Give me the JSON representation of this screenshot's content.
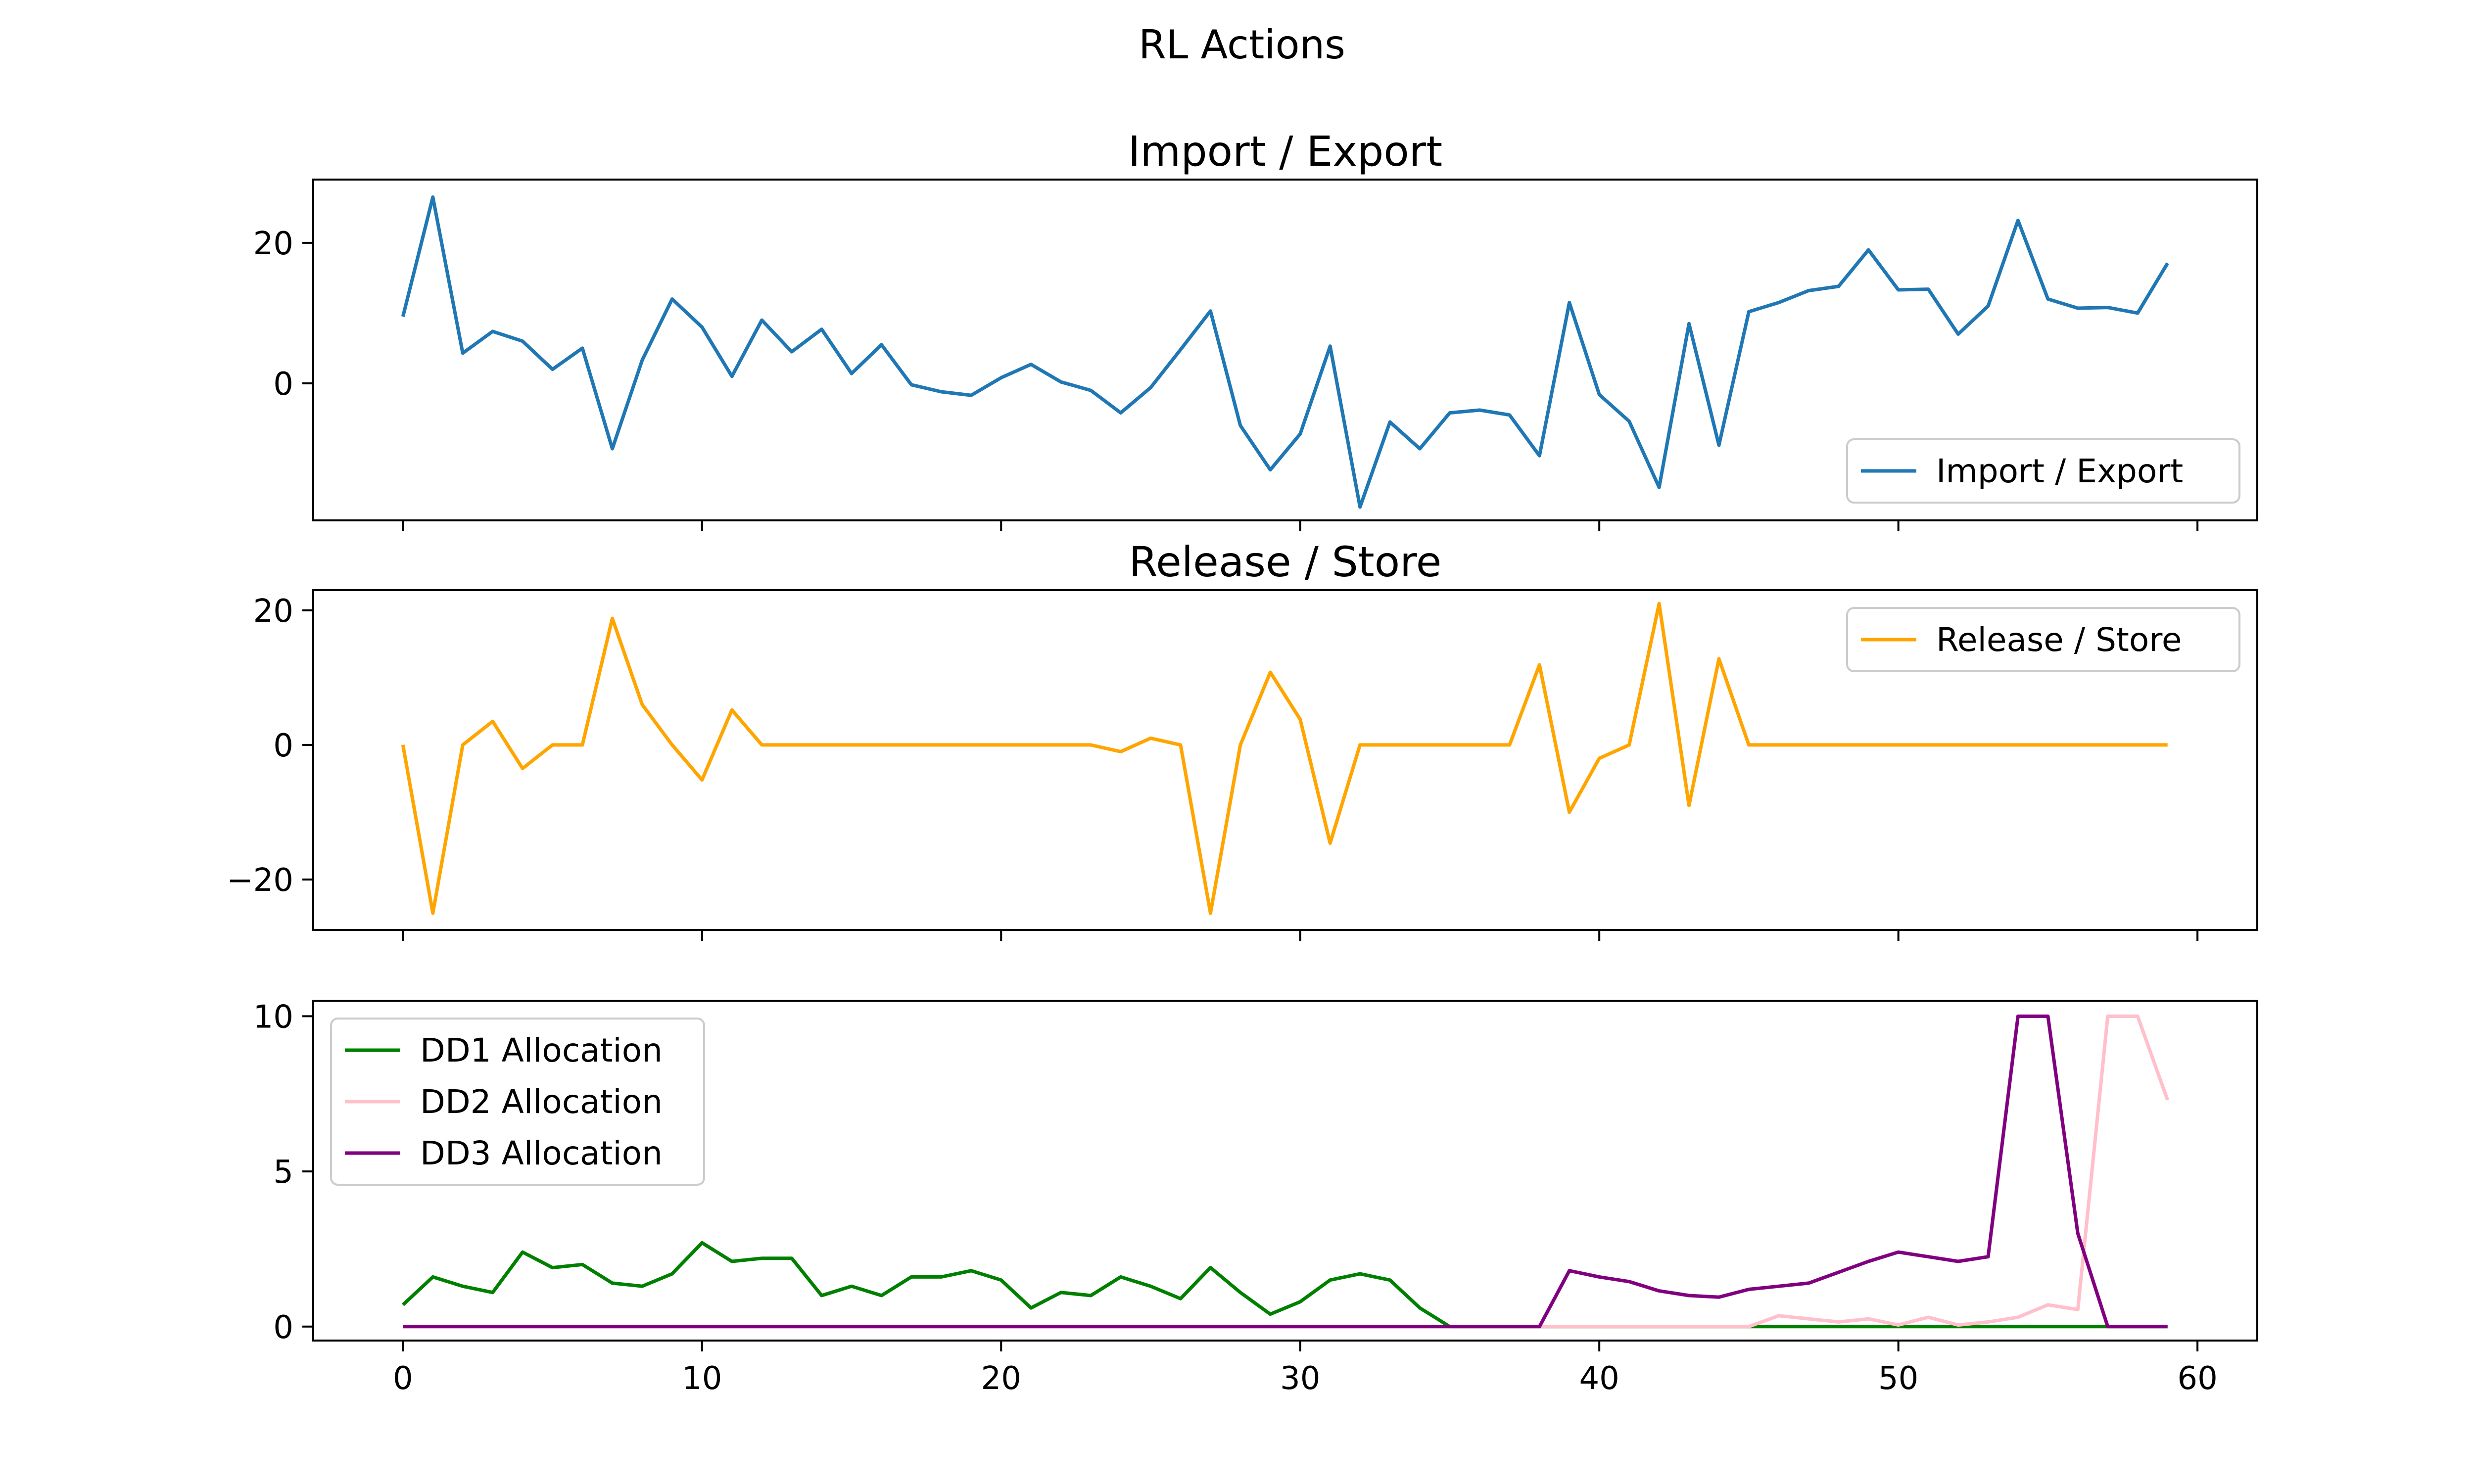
{
  "figure": {
    "suptitle": "RL Actions"
  },
  "chart_data": [
    {
      "type": "line",
      "title": "Import / Export",
      "xlabel": "",
      "ylabel": "",
      "xlim": [
        -3,
        62
      ],
      "ylim": [
        -19.5,
        29
      ],
      "xticks": [
        0,
        10,
        20,
        30,
        40,
        50,
        60
      ],
      "xticklabels_visible": false,
      "yticks": [
        0,
        20
      ],
      "grid": false,
      "legend_position": "lower right",
      "x": [
        0,
        1,
        2,
        3,
        4,
        5,
        6,
        7,
        8,
        9,
        10,
        11,
        12,
        13,
        14,
        15,
        16,
        17,
        18,
        19,
        20,
        21,
        22,
        23,
        24,
        25,
        26,
        27,
        28,
        29,
        30,
        31,
        32,
        33,
        34,
        35,
        36,
        37,
        38,
        39,
        40,
        41,
        42,
        43,
        44,
        45,
        46,
        47,
        48,
        49,
        50,
        51,
        52,
        53,
        54,
        55,
        56,
        57,
        58,
        59
      ],
      "series": [
        {
          "name": "Import / Export",
          "color": "#1f77b4",
          "values": [
            9.5,
            26.5,
            4.3,
            7.4,
            6,
            2,
            5,
            -9.3,
            3.3,
            12,
            8,
            1,
            9,
            4.5,
            7.7,
            1.4,
            5.5,
            -0.2,
            -1.2,
            -1.7,
            0.8,
            2.7,
            0.2,
            -1,
            -4.2,
            -0.6,
            4.8,
            10.3,
            -6,
            -12.3,
            -7.2,
            5.3,
            -17.6,
            -5.5,
            -9.3,
            -4.2,
            -3.8,
            -4.5,
            -10.3,
            11.5,
            -1.6,
            -5.4,
            -14.8,
            8.5,
            -8.8,
            10.2,
            11.5,
            13.2,
            13.8,
            19,
            13.3,
            13.4,
            7,
            11,
            23.2,
            12,
            10.7,
            10.8,
            10,
            17.1
          ]
        }
      ]
    },
    {
      "type": "line",
      "title": "Release / Store",
      "xlabel": "",
      "ylabel": "",
      "xlim": [
        -3,
        62
      ],
      "ylim": [
        -27.5,
        23
      ],
      "xticks": [
        0,
        10,
        20,
        30,
        40,
        50,
        60
      ],
      "xticklabels_visible": false,
      "yticks": [
        -20,
        0,
        20
      ],
      "grid": false,
      "legend_position": "upper right",
      "x": [
        0,
        1,
        2,
        3,
        4,
        5,
        6,
        7,
        8,
        9,
        10,
        11,
        12,
        13,
        14,
        15,
        16,
        17,
        18,
        19,
        20,
        21,
        22,
        23,
        24,
        25,
        26,
        27,
        28,
        29,
        30,
        31,
        32,
        33,
        34,
        35,
        36,
        37,
        38,
        39,
        40,
        41,
        42,
        43,
        44,
        45,
        46,
        47,
        48,
        49,
        50,
        51,
        52,
        53,
        54,
        55,
        56,
        57,
        58,
        59
      ],
      "series": [
        {
          "name": "Release / Store",
          "color": "#ffa500",
          "values": [
            0,
            -25,
            0,
            3.5,
            -3.5,
            0,
            0,
            18.8,
            6,
            0,
            -5.2,
            5.2,
            0,
            0,
            0,
            0,
            0,
            0,
            0,
            0,
            0,
            0,
            0,
            0,
            -1,
            1,
            0,
            -25,
            0,
            10.8,
            3.8,
            -14.6,
            0,
            0,
            0,
            0,
            0,
            0,
            11.9,
            -10,
            -2,
            0,
            21,
            -9,
            12.8,
            0,
            0,
            0,
            0,
            0,
            0,
            0,
            0,
            0,
            0,
            0,
            0,
            0,
            0,
            0
          ]
        }
      ]
    },
    {
      "type": "line",
      "title": "",
      "xlabel": "",
      "ylabel": "",
      "xlim": [
        -3,
        62
      ],
      "ylim": [
        -0.45,
        10.5
      ],
      "xticks": [
        0,
        10,
        20,
        30,
        40,
        50,
        60
      ],
      "xticklabels_visible": true,
      "yticks": [
        0,
        5,
        10
      ],
      "grid": false,
      "legend_position": "upper left",
      "x": [
        0,
        1,
        2,
        3,
        4,
        5,
        6,
        7,
        8,
        9,
        10,
        11,
        12,
        13,
        14,
        15,
        16,
        17,
        18,
        19,
        20,
        21,
        22,
        23,
        24,
        25,
        26,
        27,
        28,
        29,
        30,
        31,
        32,
        33,
        34,
        35,
        36,
        37,
        38,
        39,
        40,
        41,
        42,
        43,
        44,
        45,
        46,
        47,
        48,
        49,
        50,
        51,
        52,
        53,
        54,
        55,
        56,
        57,
        58,
        59
      ],
      "series": [
        {
          "name": "DD1 Allocation",
          "color": "#008000",
          "values": [
            0.7,
            1.6,
            1.3,
            1.1,
            2.4,
            1.9,
            2,
            1.4,
            1.3,
            1.7,
            2.7,
            2.1,
            2.2,
            2.2,
            1,
            1.3,
            1,
            1.6,
            1.6,
            1.8,
            1.5,
            0.6,
            1.1,
            1,
            1.6,
            1.3,
            0.9,
            1.9,
            1.1,
            0.4,
            0.8,
            1.5,
            1.7,
            1.5,
            0.6,
            0,
            0,
            0,
            0,
            0,
            0,
            0,
            0,
            0,
            0,
            0,
            0,
            0,
            0,
            0,
            0,
            0,
            0,
            0,
            0,
            0,
            0,
            0,
            0,
            0
          ]
        },
        {
          "name": "DD2 Allocation",
          "color": "#ffc0cb",
          "values": [
            0,
            0,
            0,
            0,
            0,
            0,
            0,
            0,
            0,
            0,
            0,
            0,
            0,
            0,
            0,
            0,
            0,
            0,
            0,
            0,
            0,
            0,
            0,
            0,
            0,
            0,
            0,
            0,
            0,
            0,
            0,
            0,
            0,
            0,
            0,
            0,
            0,
            0,
            0,
            0,
            0,
            0,
            0,
            0,
            0,
            0,
            0.35,
            0.25,
            0.15,
            0.25,
            0.05,
            0.3,
            0.05,
            0.15,
            0.3,
            0.7,
            0.55,
            10,
            10,
            7.3
          ]
        },
        {
          "name": "DD3 Allocation",
          "color": "#800080",
          "values": [
            0,
            0,
            0,
            0,
            0,
            0,
            0,
            0,
            0,
            0,
            0,
            0,
            0,
            0,
            0,
            0,
            0,
            0,
            0,
            0,
            0,
            0,
            0,
            0,
            0,
            0,
            0,
            0,
            0,
            0,
            0,
            0,
            0,
            0,
            0,
            0,
            0,
            0,
            0,
            1.8,
            1.6,
            1.45,
            1.15,
            1,
            0.95,
            1.2,
            1.3,
            1.4,
            1.75,
            2.1,
            2.4,
            2.25,
            2.1,
            2.25,
            10,
            10,
            3,
            0,
            0,
            0
          ]
        }
      ]
    }
  ]
}
